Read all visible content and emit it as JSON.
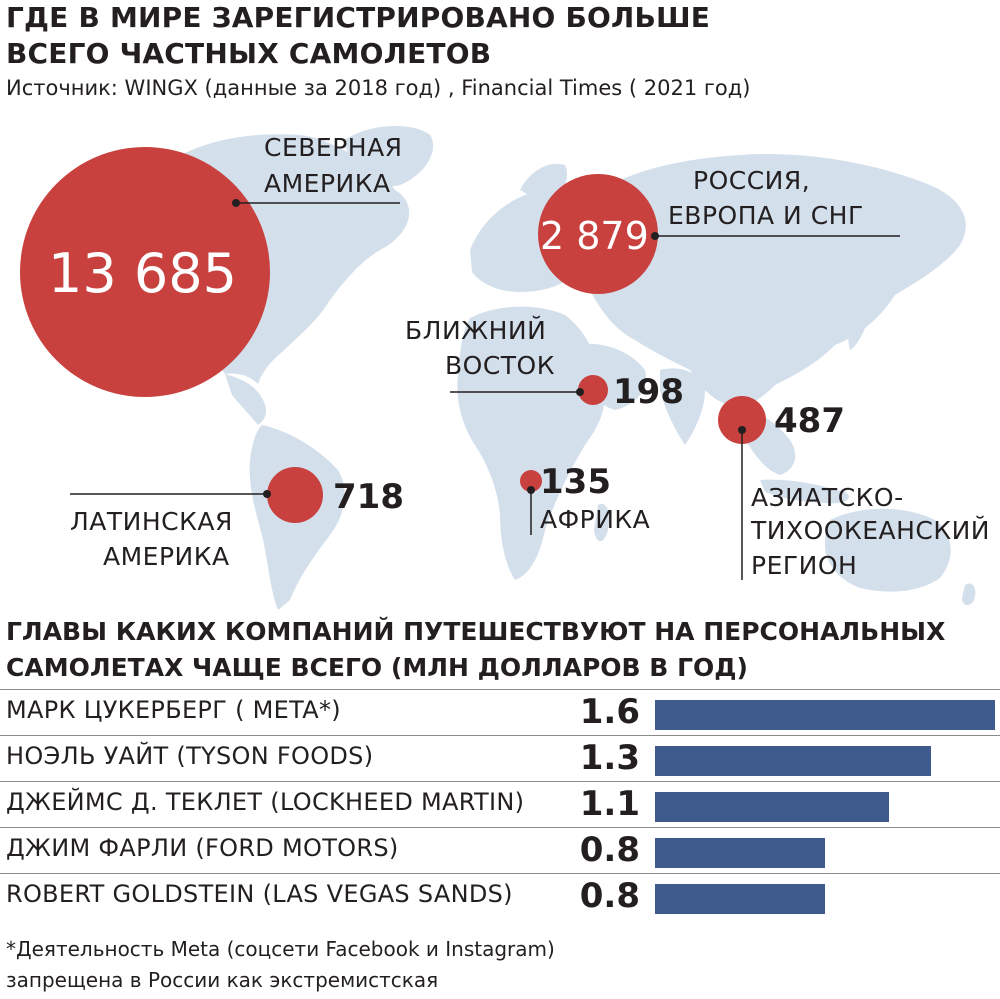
{
  "title": [
    "ГДЕ В МИРЕ ЗАРЕГИСТРИРОВАНО БОЛЬШЕ",
    "ВСЕГО ЧАСТНЫХ САМОЛЕТОВ"
  ],
  "source": "Источник: WINGX (данные за 2018 год) , Financial Times ( 2021 год)",
  "colors": {
    "bubble": "#c8413e",
    "map": "#d3dfeb",
    "bar": "#3f5a8c",
    "text": "#231f20"
  },
  "chart_data": [
    {
      "type": "bubble-map",
      "regions": [
        {
          "name": [
            "СЕВЕРНАЯ",
            "АМЕРИКА"
          ],
          "value": 13685,
          "value_label": "13 685"
        },
        {
          "name": [
            "РОССИЯ,",
            "ЕВРОПА И СНГ"
          ],
          "value": 2879,
          "value_label": "2 879"
        },
        {
          "name": [
            "БЛИЖНИЙ",
            "ВОСТОК"
          ],
          "value": 198,
          "value_label": "198"
        },
        {
          "name": [
            "АЗИАТСКО-",
            "ТИХООКЕАНСКИЙ",
            "РЕГИОН"
          ],
          "value": 487,
          "value_label": "487"
        },
        {
          "name": [
            "ЛАТИНСКАЯ",
            "АМЕРИКА"
          ],
          "value": 718,
          "value_label": "718"
        },
        {
          "name": [
            "АФРИКА"
          ],
          "value": 135,
          "value_label": "135"
        }
      ]
    },
    {
      "type": "bar",
      "title": [
        "ГЛАВЫ КАКИХ КОМПАНИЙ ПУТЕШЕСТВУЮТ НА ПЕРСОНАЛЬНЫХ",
        "САМОЛЕТАХ ЧАЩЕ ВСЕГО (МЛН ДОЛЛАРОВ В ГОД)"
      ],
      "categories": [
        "МАРК ЦУКЕРБЕРГ ( META*)",
        "НОЭЛЬ УАЙТ (TYSON FOODS)",
        "ДЖЕЙМС Д. ТЕКЛЕТ (LOCKHEED MARTIN)",
        "ДЖИМ ФАРЛИ (FORD MOTORS)",
        "ROBERT GOLDSTEIN (LAS VEGAS SANDS)"
      ],
      "values": [
        1.6,
        1.3,
        1.1,
        0.8,
        0.8
      ],
      "value_labels": [
        "1.6",
        "1.3",
        "1.1",
        "0.8",
        "0.8"
      ],
      "xlim": [
        0,
        1.6
      ]
    }
  ],
  "footnote": [
    "*Деятельность Meta (соцсети Facebook и Instagram)",
    "запрещена в России как экстремистская"
  ]
}
